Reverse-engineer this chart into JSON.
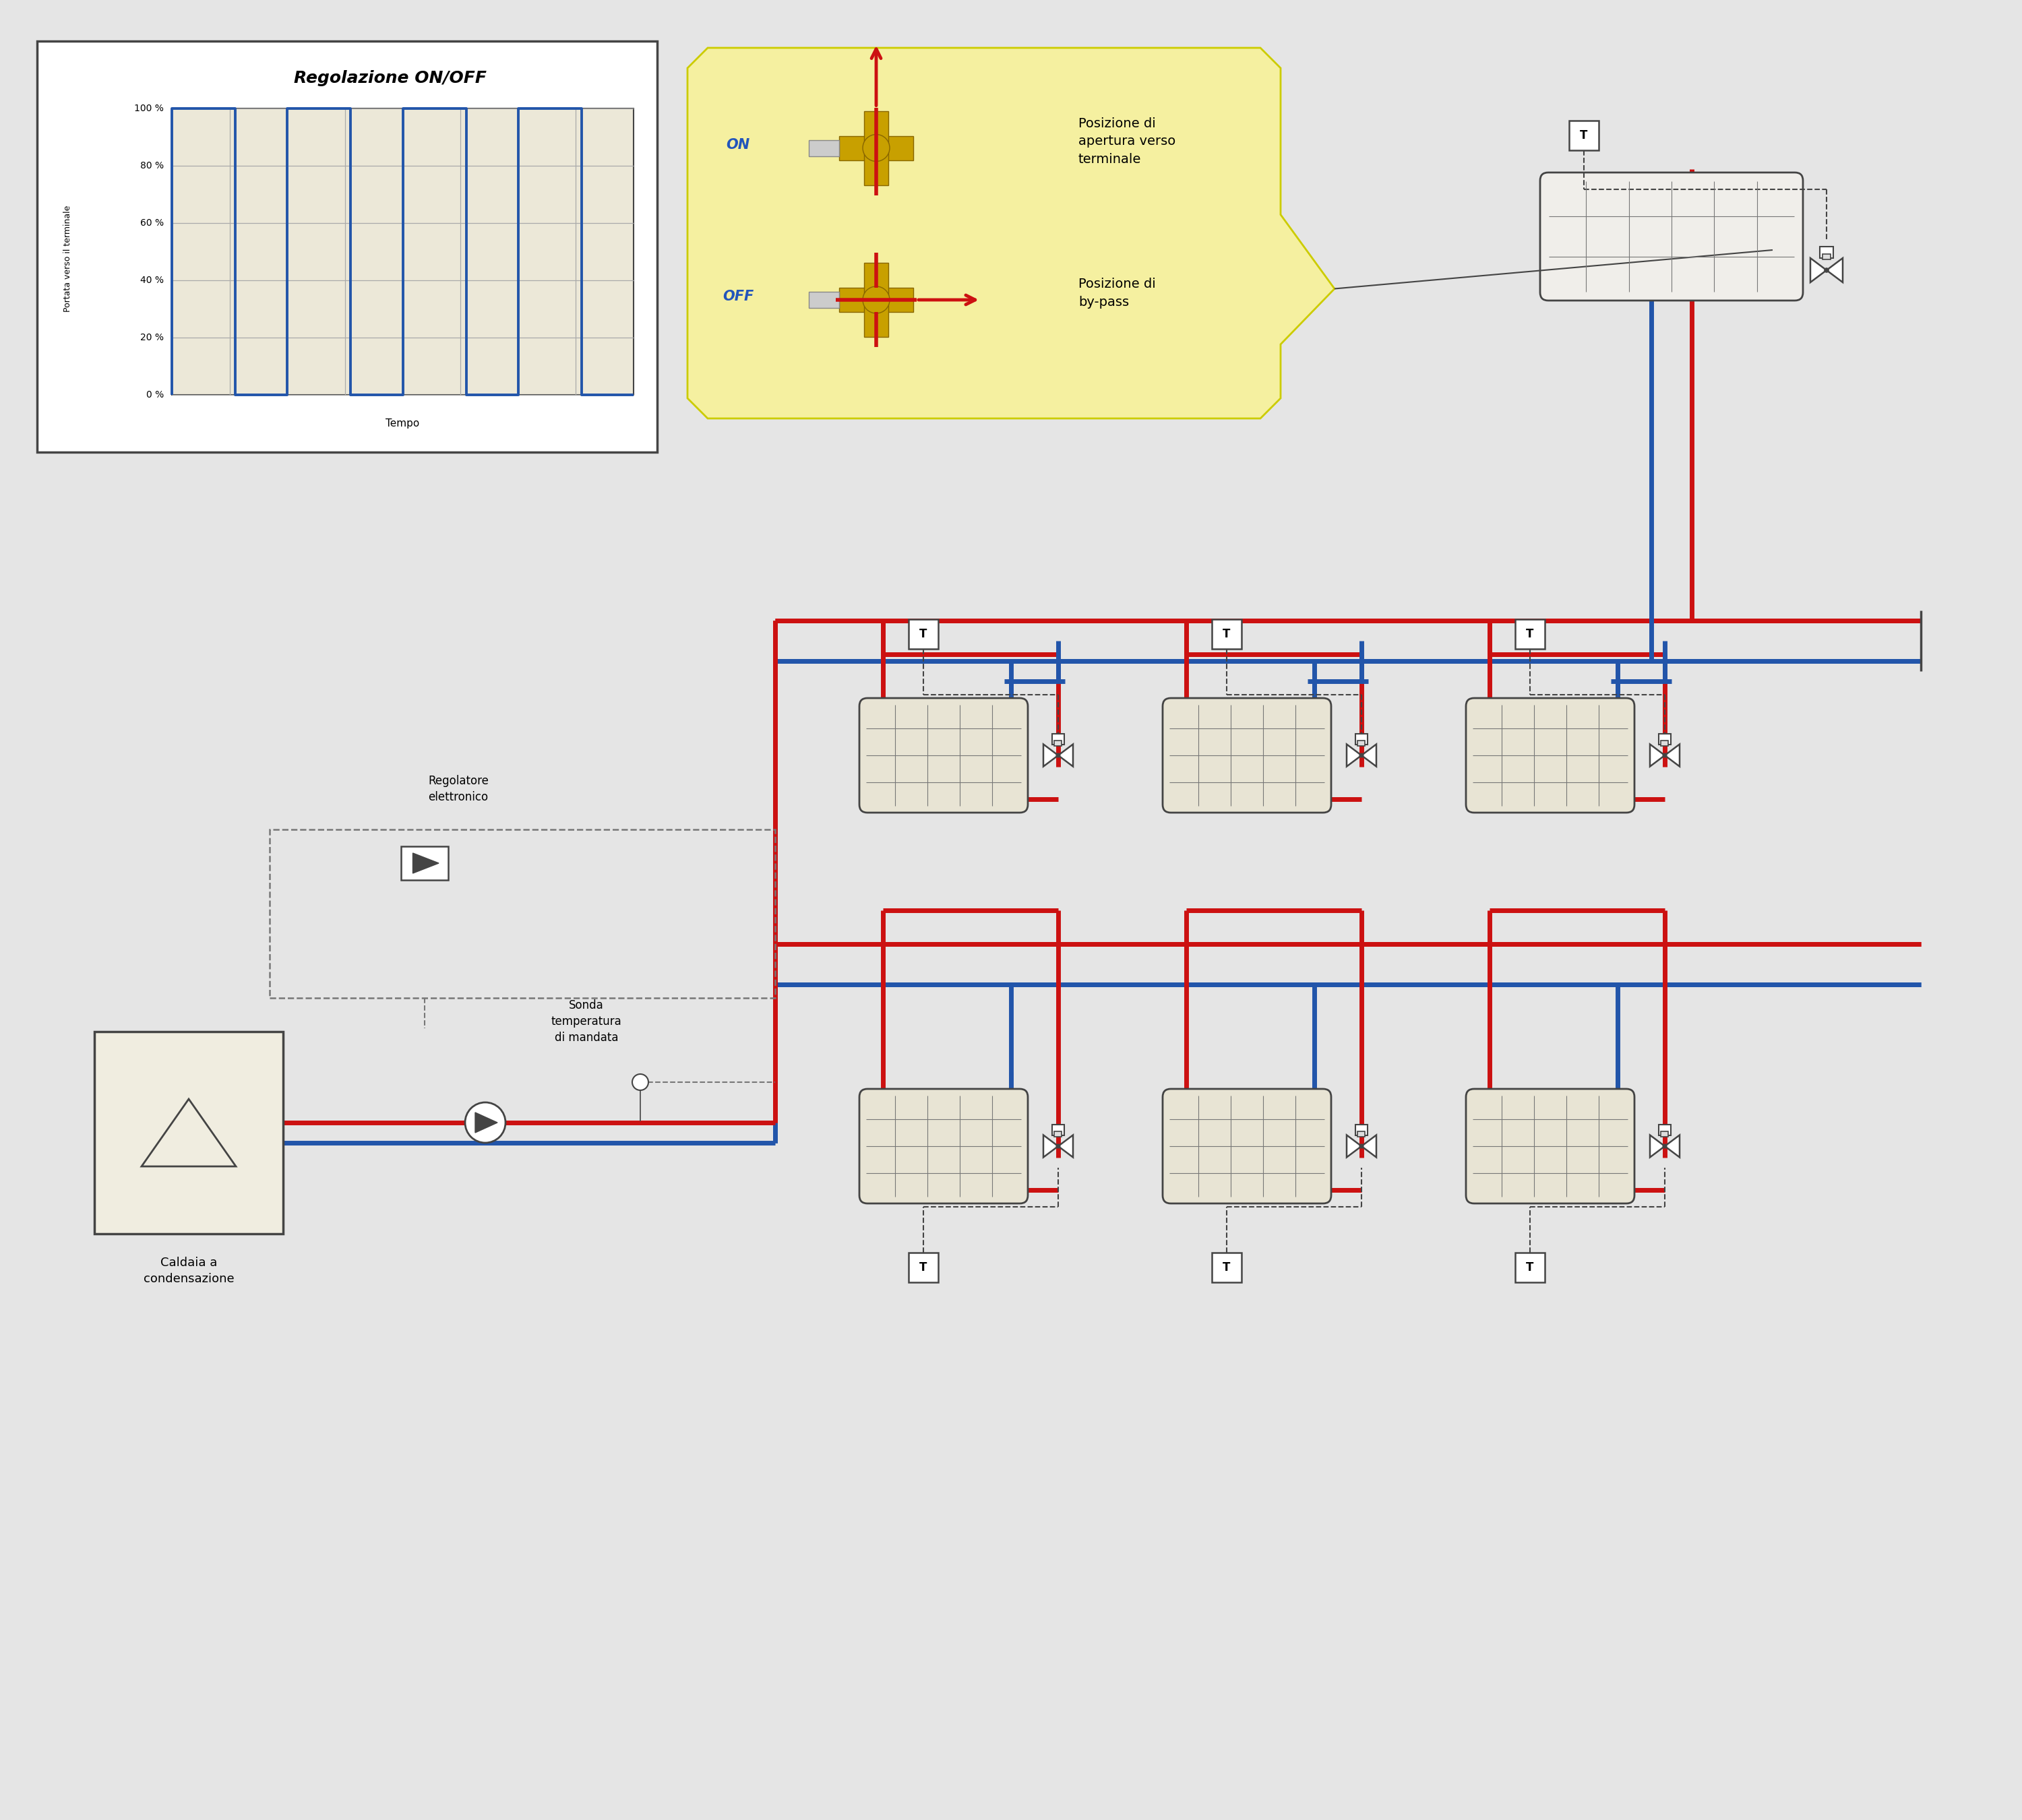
{
  "bg_color": "#e5e5e5",
  "white": "#ffffff",
  "black": "#000000",
  "red": "#cc1111",
  "blue": "#2255aa",
  "yellow_bg": "#f5f0a0",
  "chart_bg": "#ece8d8",
  "fancoil_bg": "#e8e4d4",
  "boiler_bg": "#f0ede0",
  "dark_gray": "#444444",
  "mid_gray": "#777777",
  "light_gray": "#aaaaaa",
  "valve_gold": "#c8a000",
  "valve_gold_dark": "#886600",
  "pipe_lw": 5,
  "title_inset": "Regolazione ON/OFF",
  "ylabel_inset": "Portata verso il terminale",
  "xlabel_inset": "Tempo",
  "yticks": [
    "100 %",
    "80 %",
    "60 %",
    "40 %",
    "20 %",
    "0 %"
  ],
  "label_regolatore": "Regolatore\nelettronico",
  "label_sonda": "Sonda\ntemperatura\ndi mandata",
  "label_caldaia": "Caldaia a\ncondensazione",
  "label_pos_apertura": "Posizione di\napertura verso\nterminale",
  "label_pos_bypass": "Posizione di\nby-pass",
  "label_on": "ON",
  "label_off": "OFF"
}
